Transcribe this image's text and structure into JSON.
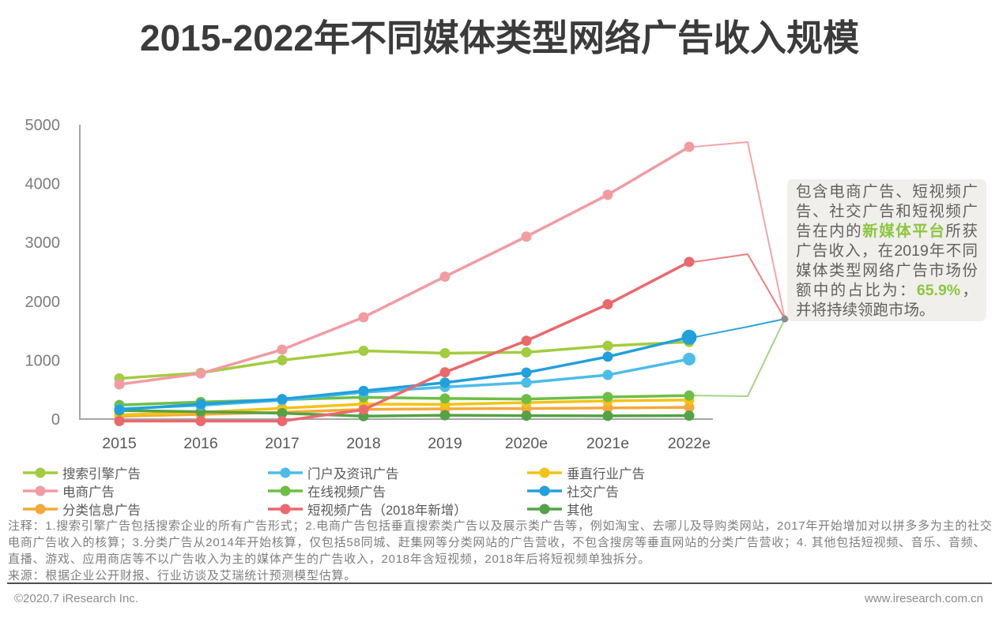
{
  "title": "2015-2022年不同媒体类型网络广告收入规模",
  "chart_data": {
    "type": "line",
    "categories": [
      "2015",
      "2016",
      "2017",
      "2018",
      "2019",
      "2020e",
      "2021e",
      "2022e"
    ],
    "ylim": [
      0,
      5000
    ],
    "yticks": [
      0,
      1000,
      2000,
      3000,
      4000,
      5000
    ],
    "grid": false,
    "legend_position": "bottom",
    "series": [
      {
        "name": "搜索引擎广告",
        "color": "#a3cc3f",
        "values": [
          690,
          785,
          1000,
          1160,
          1120,
          1135,
          1245,
          1310
        ]
      },
      {
        "name": "门户及资讯广告",
        "color": "#4bbde8",
        "values": [
          175,
          235,
          320,
          455,
          545,
          620,
          750,
          1020
        ]
      },
      {
        "name": "垂直行业广告",
        "color": "#f2c313",
        "values": [
          70,
          115,
          185,
          255,
          250,
          280,
          310,
          325
        ]
      },
      {
        "name": "电商广告",
        "color": "#f29ba1",
        "values": [
          590,
          775,
          1180,
          1730,
          2420,
          3100,
          3810,
          4625
        ]
      },
      {
        "name": "在线视频广告",
        "color": "#6ebe46",
        "values": [
          240,
          290,
          330,
          370,
          350,
          340,
          375,
          400
        ]
      },
      {
        "name": "社交广告",
        "color": "#22a0dc",
        "values": [
          160,
          255,
          340,
          480,
          620,
          790,
          1060,
          1390
        ]
      },
      {
        "name": "分类信息广告",
        "color": "#f6a83a",
        "values": [
          50,
          80,
          115,
          165,
          175,
          180,
          190,
          200
        ]
      },
      {
        "name": "短视频广告（2018年新增）",
        "color": "#eb686c",
        "values": [
          0,
          0,
          0,
          160,
          795,
          1330,
          1950,
          2670
        ]
      },
      {
        "name": "其他",
        "color": "#53a344",
        "values": [
          145,
          125,
          100,
          50,
          65,
          58,
          55,
          58
        ]
      }
    ]
  },
  "annotation": {
    "segments": [
      {
        "text": "包含电商广告、短视频广告、社交广告和短视频广告在内的",
        "highlight": false
      },
      {
        "text": "新媒体平台",
        "highlight": true
      },
      {
        "text": "所获广告收入，在2019年不同媒体类型网络广告市场份额中的占比为：",
        "highlight": false
      },
      {
        "text": "65.9%",
        "highlight": true
      },
      {
        "text": "，并将持续领跑市场。",
        "highlight": false
      }
    ],
    "highlight_color": "#8dc63f"
  },
  "notes": {
    "note_text": "注释：1.搜索引擎广告包括搜索企业的所有广告形式；2.电商广告包括垂直搜索类广告以及展示类广告等，例如淘宝、去哪儿及导购类网站，2017年开始增加对以拼多多为主的社交电商广告收入的核算；3.分类广告从2014年开始核算，仅包括58同城、赶集网等分类网站的广告营收，不包含搜房等垂直网站的分类广告营收；4. 其他包括短视频、音乐、音频、直播、游戏、应用商店等不以广告收入为主的媒体产生的广告收入，2018年含短视频，2018年后将短视频单独拆分。",
    "source_text": "来源：根据企业公开财报、行业访谈及艾瑞统计预测模型估算。"
  },
  "footer": {
    "left": "©2020.7 iResearch Inc.",
    "right": "www.iresearch.com.cn"
  }
}
